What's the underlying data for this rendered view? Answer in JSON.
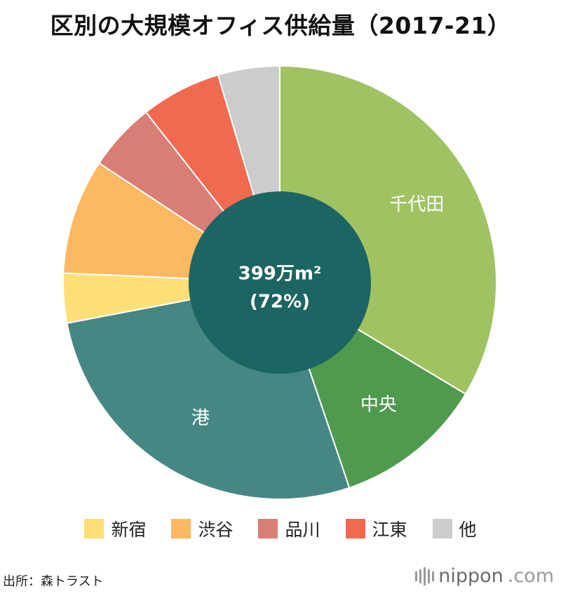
{
  "title": "区別の大規模オフィス供給量（2017-21）",
  "chart_data": {
    "type": "pie",
    "slices": [
      {
        "label": "千代田",
        "value": 33.6,
        "color": "#a0c263",
        "show_label": true
      },
      {
        "label": "中央",
        "value": 11.2,
        "color": "#509a50",
        "show_label": true
      },
      {
        "label": "港",
        "value": 27.2,
        "color": "#468784",
        "show_label": true
      },
      {
        "label": "新宿",
        "value": 3.7,
        "color": "#fddf75",
        "show_label": false
      },
      {
        "label": "渋谷",
        "value": 8.6,
        "color": "#fdb862",
        "show_label": false
      },
      {
        "label": "品川",
        "value": 5.1,
        "color": "#d97e76",
        "show_label": false
      },
      {
        "label": "江東",
        "value": 6.0,
        "color": "#f06a50",
        "show_label": false
      },
      {
        "label": "他",
        "value": 4.6,
        "color": "#cccccc",
        "show_label": false
      }
    ],
    "center": {
      "line1": "399万m²",
      "line2": "(72%)",
      "color": "#1d6562"
    }
  },
  "legend": [
    {
      "label": "新宿",
      "color": "#fddf75"
    },
    {
      "label": "渋谷",
      "color": "#fdb862"
    },
    {
      "label": "品川",
      "color": "#d97e76"
    },
    {
      "label": "江東",
      "color": "#f06a50"
    },
    {
      "label": "他",
      "color": "#cccccc"
    }
  ],
  "source": "出所：森トラスト",
  "brand": {
    "name": "nippon",
    "suffix": ".com"
  }
}
